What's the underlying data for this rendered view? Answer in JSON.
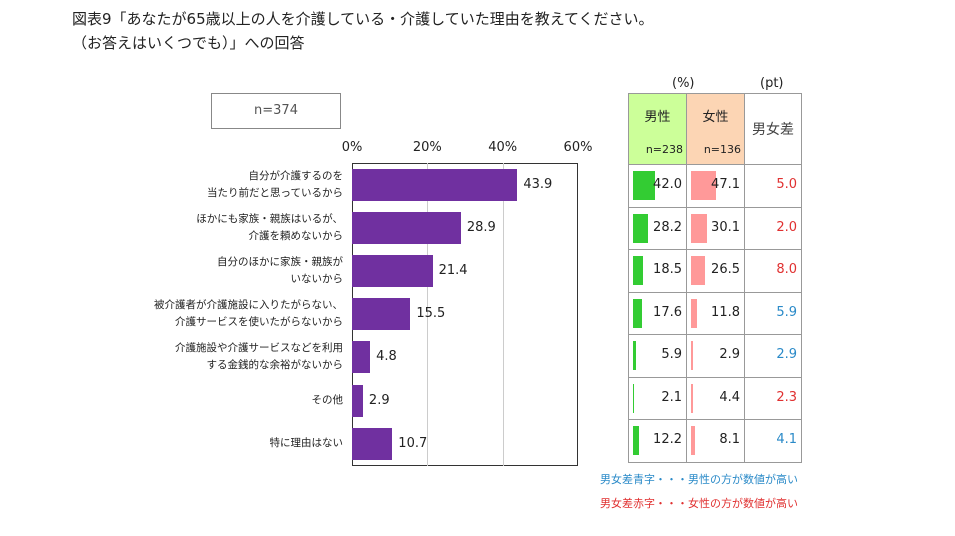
{
  "title": [
    "図表9「あなたが65歳以上の人を介護している・介護していた理由を教えてください。",
    "（お答えはいくつでも）」への回答"
  ],
  "sample": "n=374",
  "chart_data": {
    "type": "bar",
    "orientation": "horizontal",
    "categories": [
      [
        "自分が介護するのを",
        "当たり前だと思っているから"
      ],
      [
        "ほかにも家族・親族はいるが、",
        "介護を頼めないから"
      ],
      [
        "自分のほかに家族・親族が",
        "いないから"
      ],
      [
        "被介護者が介護施設に入りたがらない、",
        "介護サービスを使いたがらないから"
      ],
      [
        "介護施設や介護サービスなどを利用",
        "する金銭的な余裕がないから"
      ],
      [
        "その他"
      ],
      [
        "特に理由はない"
      ]
    ],
    "values": [
      43.9,
      28.9,
      21.4,
      15.5,
      4.8,
      2.9,
      10.7
    ],
    "value_labels": [
      "43.9",
      "28.9",
      "21.4",
      "15.5",
      "4.8",
      "2.9",
      "10.7"
    ],
    "xlim": [
      0,
      60
    ],
    "ticks": [
      "0%",
      "20%",
      "40%",
      "60%"
    ],
    "grid": true,
    "color": "#7030a0"
  },
  "table": {
    "unit_pct": "(%)",
    "unit_pt": "(pt)",
    "male": {
      "label": "男性",
      "n": "n=238",
      "color": "#33cc33",
      "header_bg": "#ccff99"
    },
    "female": {
      "label": "女性",
      "n": "n=136",
      "color": "#ff9999",
      "header_bg": "#fcd5b4"
    },
    "diff_label": "男女差",
    "rows": [
      {
        "m": 42.0,
        "ml": "42.0",
        "f": 47.1,
        "fl": "47.1",
        "d": "5.0",
        "c": "red"
      },
      {
        "m": 28.2,
        "ml": "28.2",
        "f": 30.1,
        "fl": "30.1",
        "d": "2.0",
        "c": "red"
      },
      {
        "m": 18.5,
        "ml": "18.5",
        "f": 26.5,
        "fl": "26.5",
        "d": "8.0",
        "c": "red"
      },
      {
        "m": 17.6,
        "ml": "17.6",
        "f": 11.8,
        "fl": "11.8",
        "d": "5.9",
        "c": "blue"
      },
      {
        "m": 5.9,
        "ml": "5.9",
        "f": 2.9,
        "fl": "2.9",
        "d": "2.9",
        "c": "blue"
      },
      {
        "m": 2.1,
        "ml": "2.1",
        "f": 4.4,
        "fl": "4.4",
        "d": "2.3",
        "c": "red"
      },
      {
        "m": 12.2,
        "ml": "12.2",
        "f": 8.1,
        "fl": "8.1",
        "d": "4.1",
        "c": "blue"
      }
    ]
  },
  "colors": {
    "red": "#e03030",
    "blue": "#2a8ac8"
  },
  "notes": [
    {
      "text": "男女差青字・・・男性の方が数値が高い",
      "c": "blue"
    },
    {
      "text": "男女差赤字・・・女性の方が数値が高い",
      "c": "red"
    }
  ]
}
